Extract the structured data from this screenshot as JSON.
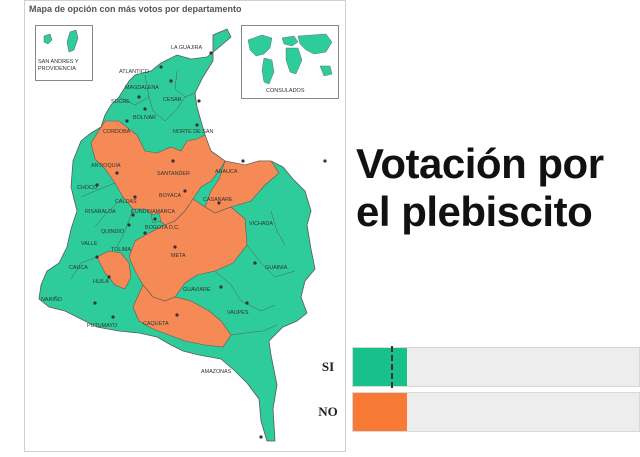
{
  "map": {
    "title": "Mapa de opción con más votos por departamento",
    "colors": {
      "si": "#2ecc9a",
      "no": "#f58a57",
      "border": "#5a5a5a"
    },
    "insets": {
      "islands_label": "SAN ANDRES Y PROVIDENCIA",
      "world_label": "CONSULADOS"
    },
    "departments": [
      {
        "name": "LA GUAJIRA",
        "winner": "si"
      },
      {
        "name": "ATLANTICO",
        "winner": "si"
      },
      {
        "name": "MAGDALENA",
        "winner": "si"
      },
      {
        "name": "CESAR",
        "winner": "si"
      },
      {
        "name": "SUCRE",
        "winner": "si"
      },
      {
        "name": "BOLIVAR",
        "winner": "si"
      },
      {
        "name": "CORDOBA",
        "winner": "no"
      },
      {
        "name": "NORTE DE SAN",
        "winner": "no"
      },
      {
        "name": "ANTIOQUIA",
        "winner": "no"
      },
      {
        "name": "ARAUCA",
        "winner": "no"
      },
      {
        "name": "SANTANDER",
        "winner": "no"
      },
      {
        "name": "CHOCO",
        "winner": "si"
      },
      {
        "name": "BOYACA",
        "winner": "no"
      },
      {
        "name": "CASANARE",
        "winner": "no"
      },
      {
        "name": "CALDAS",
        "winner": "no"
      },
      {
        "name": "CUNDINAMARCA",
        "winner": "no"
      },
      {
        "name": "RISARALDA",
        "winner": "no"
      },
      {
        "name": "QUINDIO",
        "winner": "no"
      },
      {
        "name": "BOGOTA D.C.",
        "winner": "si"
      },
      {
        "name": "VICHADA",
        "winner": "si"
      },
      {
        "name": "VALLE",
        "winner": "si"
      },
      {
        "name": "TOLIMA",
        "winner": "no"
      },
      {
        "name": "META",
        "winner": "no"
      },
      {
        "name": "CAUCA",
        "winner": "si"
      },
      {
        "name": "HUILA",
        "winner": "no"
      },
      {
        "name": "GUAINIA",
        "winner": "si"
      },
      {
        "name": "GUAVIARE",
        "winner": "si"
      },
      {
        "name": "NARIÑO",
        "winner": "si"
      },
      {
        "name": "PUTUMAYO",
        "winner": "si"
      },
      {
        "name": "VAUPES",
        "winner": "si"
      },
      {
        "name": "CAQUETA",
        "winner": "no"
      },
      {
        "name": "AMAZONAS",
        "winner": "si"
      }
    ]
  },
  "headline": {
    "line1": "Votación por",
    "line2": "el plebiscito"
  },
  "results": [
    {
      "key": "si",
      "label": "SI",
      "color": "#18c18a"
    },
    {
      "key": "no",
      "label": "NO",
      "color": "#f97a34"
    }
  ]
}
